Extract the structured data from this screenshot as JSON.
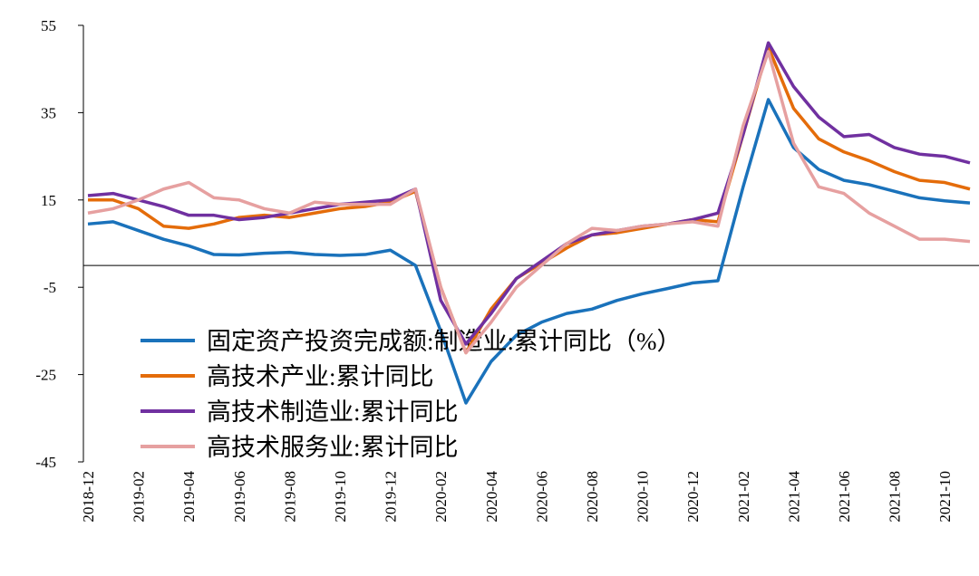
{
  "chart_data": {
    "type": "line",
    "categories": [
      "2018-12",
      null,
      "2019-02",
      null,
      "2019-04",
      null,
      "2019-06",
      null,
      "2019-08",
      null,
      "2019-10",
      null,
      "2019-12",
      null,
      "2020-02",
      null,
      "2020-04",
      null,
      "2020-06",
      null,
      "2020-08",
      null,
      "2020-10",
      null,
      "2020-12",
      null,
      "2021-02",
      null,
      "2021-04",
      null,
      "2021-06",
      null,
      "2021-08",
      null,
      "2021-10",
      null
    ],
    "series": [
      {
        "name": "固定资产投资完成额:制造业:累计同比（%）",
        "color": "#1a72bb",
        "values": [
          9.5,
          10,
          8,
          6,
          4.5,
          2.5,
          2.4,
          2.8,
          3,
          2.5,
          2.3,
          2.5,
          3.5,
          0,
          -15,
          -31.5,
          -22,
          -16,
          -13,
          -11,
          -10,
          -8,
          -6.5,
          -5.3,
          -4,
          -3.5,
          18,
          38,
          27,
          22,
          19.5,
          18.5,
          17,
          15.5,
          14.8,
          14.3
        ]
      },
      {
        "name": "高技术产业:累计同比",
        "color": "#e46c0a",
        "values": [
          15,
          15,
          13,
          9,
          8.5,
          9.5,
          11,
          11.5,
          11,
          12,
          13,
          13.5,
          14.5,
          17,
          -5,
          -20,
          -10,
          -3,
          0.5,
          4,
          7,
          7.5,
          8.5,
          9.5,
          10.5,
          10,
          30,
          50,
          36,
          29,
          26,
          24,
          21.5,
          19.5,
          19,
          17.5
        ]
      },
      {
        "name": "高技术制造业:累计同比",
        "color": "#7030a0",
        "values": [
          16,
          16.5,
          15,
          13.5,
          11.5,
          11.5,
          10.5,
          11,
          12,
          13,
          14,
          14.5,
          15,
          17.5,
          -8,
          -18,
          -11,
          -3,
          1,
          5,
          7,
          8,
          9,
          9.5,
          10.5,
          12,
          30,
          51,
          41,
          34,
          29.5,
          30,
          27,
          25.5,
          25,
          23.5
        ]
      },
      {
        "name": "高技术服务业:累计同比",
        "color": "#e6a0a0",
        "values": [
          12,
          13,
          15,
          17.5,
          19,
          15.5,
          15,
          13,
          12,
          14.5,
          14,
          14,
          14,
          17.5,
          -5,
          -20,
          -13,
          -5,
          0,
          5,
          8.5,
          8,
          9,
          9.5,
          10,
          9,
          32,
          49,
          28,
          18,
          16.5,
          12,
          9,
          6,
          6,
          5.5
        ]
      }
    ],
    "ylim": [
      -45,
      55
    ],
    "yticks": [
      -45,
      -25,
      -5,
      15,
      35,
      55
    ]
  }
}
